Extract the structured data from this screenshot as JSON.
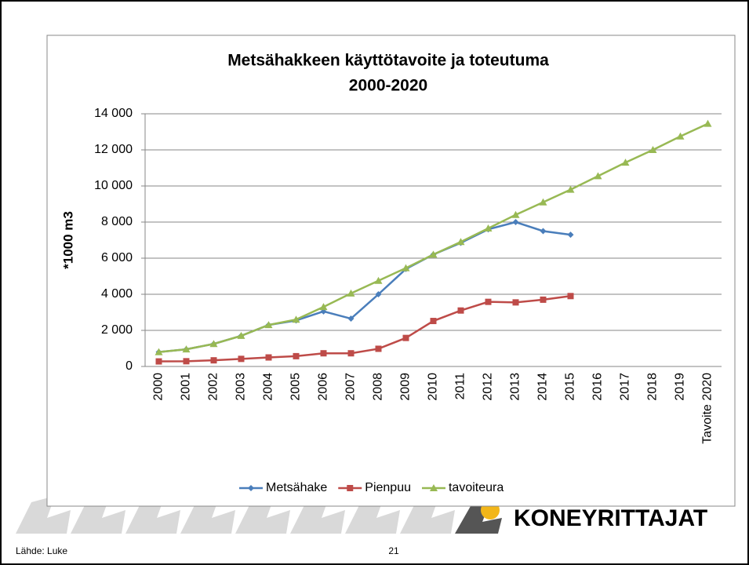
{
  "chart_data": {
    "type": "line",
    "title": [
      "Metsähakkeen käyttötavoite ja toteutuma",
      "2000-2020"
    ],
    "y_label": "*1000 m3",
    "categories": [
      "2000",
      "2001",
      "2002",
      "2003",
      "2004",
      "2005",
      "2006",
      "2007",
      "2008",
      "2009",
      "2010",
      "2011",
      "2012",
      "2013",
      "2014",
      "2015",
      "2016",
      "2017",
      "2018",
      "2019",
      "Tavoite 2020"
    ],
    "series": [
      {
        "name": "Metsähake",
        "color": "#4a7ebb",
        "marker": "diamond",
        "values": [
          800,
          950,
          1250,
          1700,
          2300,
          2550,
          3050,
          2650,
          4000,
          5400,
          6200,
          6850,
          7600,
          8000,
          7500,
          7300,
          null,
          null,
          null,
          null,
          null
        ]
      },
      {
        "name": "Pienpuu",
        "color": "#be4b48",
        "marker": "square",
        "values": [
          280,
          290,
          340,
          420,
          500,
          570,
          730,
          730,
          980,
          1580,
          2520,
          3100,
          3580,
          3550,
          3700,
          3900,
          null,
          null,
          null,
          null,
          null
        ]
      },
      {
        "name": "tavoiteura",
        "color": "#98b954",
        "marker": "triangle",
        "values": [
          800,
          950,
          1250,
          1700,
          2300,
          2600,
          3300,
          4050,
          4750,
          5450,
          6200,
          6900,
          7650,
          8400,
          9100,
          9800,
          10550,
          11300,
          12000,
          12750,
          13450
        ]
      }
    ],
    "ylim": [
      0,
      14000
    ],
    "yticks": [
      0,
      {
        "value": 2000,
        "label": "2 000"
      },
      {
        "value": 4000,
        "label": "4 000"
      },
      {
        "value": 6000,
        "label": "6 000"
      },
      {
        "value": 8000,
        "label": "8 000"
      },
      {
        "value": 10000,
        "label": "10 000"
      },
      {
        "value": 12000,
        "label": "12 000"
      },
      {
        "value": 14000,
        "label": "14 000"
      }
    ],
    "grid": true,
    "legend": "bottom"
  },
  "footer": {
    "source": "Lähde: Luke",
    "page": "21",
    "logo": "KONEYRITTAJAT"
  }
}
